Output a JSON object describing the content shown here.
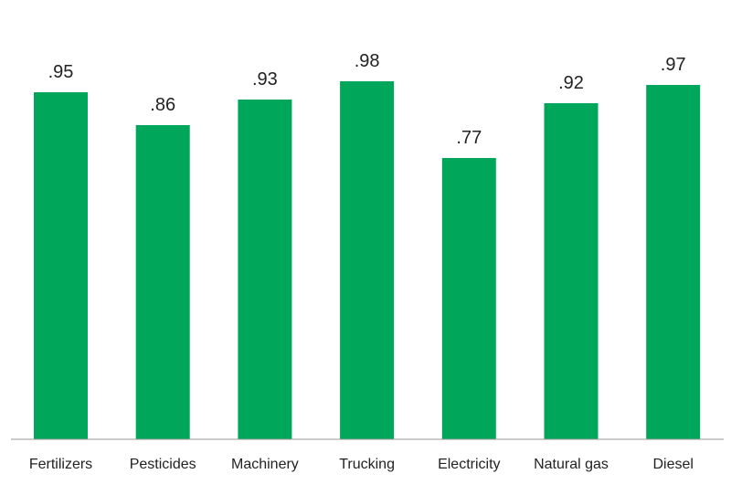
{
  "chart_data": {
    "type": "bar",
    "categories": [
      "Fertilizers",
      "Pesticides",
      "Machinery",
      "Trucking",
      "Electricity",
      "Natural gas",
      "Diesel"
    ],
    "values": [
      0.95,
      0.86,
      0.93,
      0.98,
      0.77,
      0.92,
      0.97
    ],
    "value_labels": [
      ".95",
      ".86",
      ".93",
      ".98",
      ".77",
      ".92",
      ".97"
    ],
    "ylim": [
      0,
      1.0
    ],
    "grid": false,
    "bar_color": "#00a65a"
  }
}
